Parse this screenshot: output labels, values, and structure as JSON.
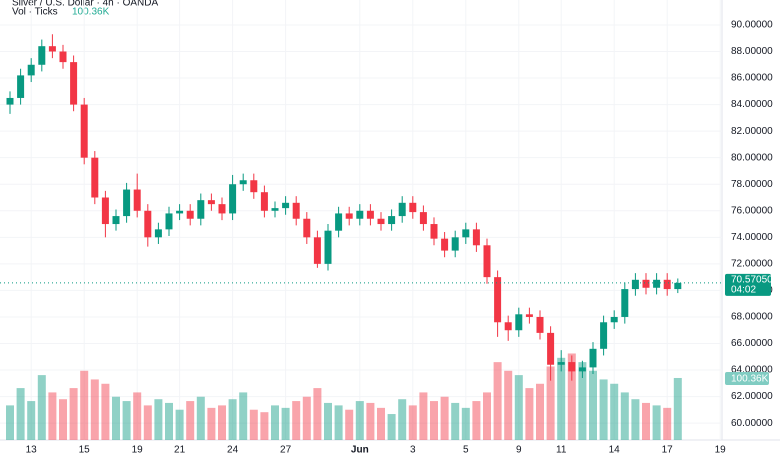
{
  "chart_data": {
    "type": "candlestick",
    "title": "Silver / U.S. Dollar · 4h · OANDA",
    "volume_title": "Vol · Ticks",
    "last_volume_label": "100.36K",
    "categories": [
      null,
      null,
      "13",
      null,
      null,
      null,
      null,
      "15",
      null,
      null,
      null,
      null,
      "19",
      null,
      null,
      null,
      "21",
      null,
      null,
      null,
      null,
      "24",
      null,
      null,
      null,
      null,
      "27",
      null,
      null,
      null,
      null,
      null,
      null,
      "Jun",
      null,
      null,
      null,
      null,
      "3",
      null,
      null,
      null,
      null,
      "5",
      null,
      null,
      null,
      null,
      "9",
      null,
      null,
      null,
      "11",
      null,
      null,
      null,
      null,
      "14",
      null,
      null,
      null,
      null,
      "17",
      null,
      null,
      null,
      null,
      "19"
    ],
    "open": [
      84.0,
      84.5,
      86.2,
      87.0,
      88.4,
      88.0,
      87.2,
      84.0,
      80.0,
      77.0,
      75.0,
      75.6,
      77.6,
      76.0,
      74.0,
      74.6,
      75.8,
      76.0,
      75.4,
      76.8,
      76.5,
      75.8,
      78.0,
      78.3,
      77.4,
      76.0,
      76.2,
      76.6,
      75.4,
      74.0,
      72.0,
      74.5,
      75.8,
      75.4,
      76.0,
      75.4,
      75.0,
      75.6,
      76.6,
      75.9,
      75.0,
      73.9,
      73.0,
      74.0,
      74.6,
      73.4,
      71.0,
      67.6,
      67.0,
      68.2,
      68.0,
      66.8,
      64.4,
      64.6,
      63.9,
      64.2,
      65.6,
      67.6,
      68.0,
      70.1,
      70.8,
      70.2,
      70.8,
      70.1,
      null,
      null,
      null,
      null
    ],
    "high": [
      85.0,
      86.7,
      87.5,
      88.9,
      89.3,
      88.5,
      87.7,
      84.5,
      80.5,
      77.5,
      76.1,
      78.1,
      78.8,
      76.5,
      75.1,
      76.3,
      76.5,
      76.5,
      77.3,
      77.3,
      77.0,
      78.7,
      78.8,
      78.8,
      77.9,
      76.7,
      77.1,
      77.1,
      75.9,
      74.5,
      75.0,
      76.3,
      76.3,
      76.5,
      76.5,
      75.9,
      76.1,
      77.1,
      77.1,
      76.4,
      75.5,
      74.4,
      74.5,
      75.1,
      75.1,
      73.9,
      71.5,
      68.1,
      68.7,
      68.7,
      68.5,
      67.3,
      65.5,
      65.1,
      64.7,
      66.1,
      68.1,
      68.5,
      70.6,
      71.3,
      71.3,
      71.3,
      71.3,
      70.9,
      null,
      null,
      null,
      null
    ],
    "low": [
      83.3,
      84.0,
      85.7,
      86.5,
      87.5,
      86.7,
      83.5,
      79.5,
      76.5,
      74.0,
      74.5,
      75.1,
      75.5,
      73.3,
      73.5,
      74.1,
      75.3,
      74.9,
      74.9,
      76.0,
      75.3,
      75.3,
      77.5,
      76.9,
      75.5,
      75.5,
      75.7,
      74.9,
      73.5,
      71.7,
      71.5,
      74.0,
      74.9,
      74.9,
      74.9,
      74.5,
      74.5,
      75.1,
      75.4,
      74.5,
      73.4,
      72.5,
      72.5,
      73.5,
      72.9,
      70.5,
      66.5,
      66.2,
      66.5,
      67.5,
      66.3,
      63.2,
      63.9,
      63.2,
      63.4,
      63.7,
      65.1,
      67.1,
      67.5,
      69.6,
      69.7,
      69.7,
      69.6,
      69.8,
      null,
      null,
      null,
      null
    ],
    "close": [
      84.5,
      86.2,
      87.0,
      88.4,
      88.0,
      87.2,
      84.0,
      80.0,
      77.0,
      75.0,
      75.6,
      77.6,
      76.0,
      74.0,
      74.6,
      75.8,
      76.0,
      75.4,
      76.8,
      76.5,
      75.8,
      78.0,
      78.3,
      77.4,
      76.0,
      76.2,
      76.6,
      75.4,
      74.0,
      72.0,
      74.5,
      75.8,
      75.4,
      76.0,
      75.4,
      75.0,
      75.6,
      76.6,
      75.9,
      75.0,
      73.9,
      73.0,
      74.0,
      74.6,
      73.4,
      71.0,
      67.6,
      67.0,
      68.2,
      68.0,
      66.8,
      64.4,
      64.6,
      63.9,
      64.2,
      65.6,
      67.6,
      68.0,
      70.1,
      70.8,
      70.2,
      70.8,
      70.1,
      70.5705,
      null,
      null,
      null,
      null
    ],
    "volume": [
      56,
      84,
      63,
      105,
      77,
      66,
      84,
      112,
      98,
      91,
      70,
      63,
      77,
      56,
      66,
      60,
      49,
      63,
      70,
      52,
      56,
      66,
      77,
      49,
      45,
      56,
      52,
      63,
      70,
      84,
      60,
      56,
      49,
      63,
      60,
      52,
      42,
      66,
      56,
      77,
      63,
      70,
      60,
      52,
      63,
      77,
      126,
      112,
      105,
      84,
      91,
      119,
      133,
      140,
      126,
      112,
      98,
      91,
      77,
      66,
      60,
      56,
      52,
      100.36,
      null,
      null,
      null,
      null
    ],
    "up_color": "#089981",
    "down_color": "#f23645",
    "ylim": [
      58.73,
      91.88
    ],
    "yticks": [
      {
        "value": 60,
        "label": "60.00000"
      },
      {
        "value": 62,
        "label": "62.00000"
      },
      {
        "value": 64,
        "label": "64.00000"
      },
      {
        "value": 66,
        "label": "66.00000"
      },
      {
        "value": 68,
        "label": "68.00000"
      },
      {
        "value": 70,
        "label": "70.00000"
      },
      {
        "value": 72,
        "label": "72.00000"
      },
      {
        "value": 74,
        "label": "74.00000"
      },
      {
        "value": 76,
        "label": "76.00000"
      },
      {
        "value": 78,
        "label": "78.00000"
      },
      {
        "value": 80,
        "label": "80.00000"
      },
      {
        "value": 82,
        "label": "82.00000"
      },
      {
        "value": 84,
        "label": "84.00000"
      },
      {
        "value": 86,
        "label": "86.00000"
      },
      {
        "value": 88,
        "label": "88.00000"
      },
      {
        "value": 90,
        "label": "90.00000"
      }
    ],
    "volume_ylim": [
      0,
      712
    ],
    "last_price": {
      "value": 70.5705,
      "label": "70.57050"
    },
    "countdown": "04:02",
    "grid": true
  }
}
